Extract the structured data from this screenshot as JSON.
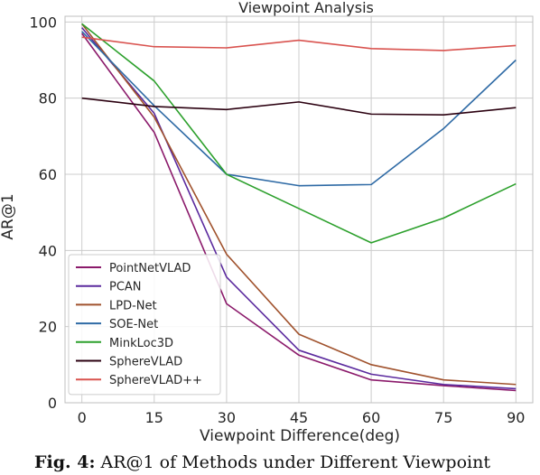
{
  "chart_data": {
    "type": "line",
    "title": "Viewpoint Analysis",
    "xlabel": "Viewpoint Difference(deg)",
    "ylabel": "AR@1",
    "x": [
      0,
      15,
      30,
      45,
      60,
      75,
      90
    ],
    "xlim": [
      -3.5,
      93.5
    ],
    "ylim": [
      0,
      101.5
    ],
    "xticks": [
      0,
      15,
      30,
      45,
      60,
      75,
      90
    ],
    "yticks": [
      0,
      20,
      40,
      60,
      80,
      100
    ],
    "grid": true,
    "legend_position": "lower-left",
    "series": [
      {
        "name": "PointNetVLAD",
        "color": "#8b1a6b",
        "values": [
          97,
          71,
          26,
          12.5,
          6,
          4.5,
          3.2
        ]
      },
      {
        "name": "PCAN",
        "color": "#5b2a9e",
        "values": [
          98.5,
          76,
          33,
          13.8,
          7.5,
          4.8,
          3.7
        ]
      },
      {
        "name": "LPD-Net",
        "color": "#a0522d",
        "values": [
          99.5,
          75,
          39,
          18,
          10,
          6,
          4.8
        ]
      },
      {
        "name": "SOE-Net",
        "color": "#2e6aa5",
        "values": [
          97.5,
          78,
          60,
          57,
          57.3,
          72,
          90
        ]
      },
      {
        "name": "MinkLoc3D",
        "color": "#2ca02c",
        "values": [
          99.5,
          84.5,
          60,
          51,
          42,
          48.5,
          57.5
        ]
      },
      {
        "name": "SphereVLAD",
        "color": "#2b0010",
        "values": [
          80,
          77.8,
          77,
          79,
          75.8,
          75.6,
          77.5
        ]
      },
      {
        "name": "SphereVLAD++",
        "color": "#d9534f",
        "values": [
          96,
          93.5,
          93.2,
          95.2,
          93,
          92.5,
          93.8
        ]
      }
    ]
  },
  "caption": {
    "label": "Fig. 4:",
    "text": " AR@1 of Methods under Different Viewpoint"
  }
}
